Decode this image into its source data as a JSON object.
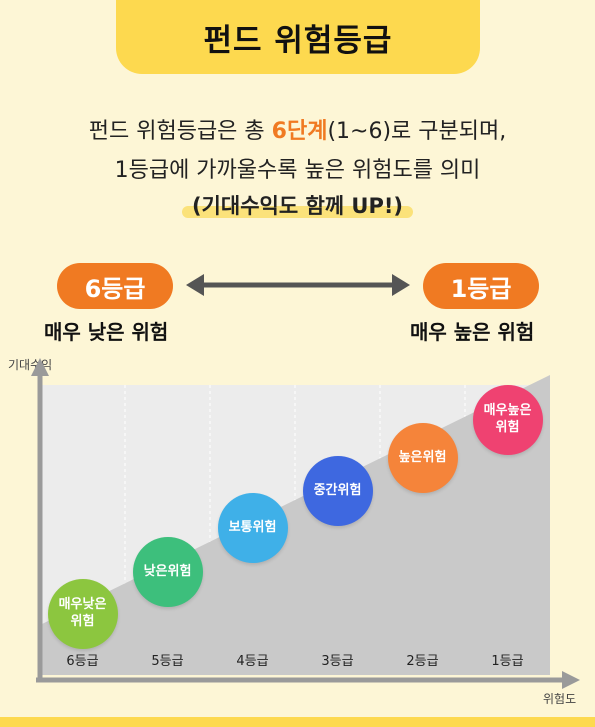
{
  "title": "펀드 위험등급",
  "description": {
    "line1_pre": "펀드 위험등급은 총 ",
    "line1_accent": "6단계",
    "line1_post": "(1~6)로 구분되며,",
    "line2": "1등급에 가까울수록 높은 위험도를 의미",
    "line3": "(기대수익도 함께 UP!)"
  },
  "scale": {
    "left_label": "6등급",
    "left_caption": "매우 낮은 위험",
    "right_label": "1등급",
    "right_caption": "매우 높은 위험"
  },
  "axes": {
    "y_label": "기대수익",
    "x_label": "위험도"
  },
  "grades": [
    {
      "tick": "6등급",
      "risk": "매우낮은\n위험",
      "color": "#8cc63f"
    },
    {
      "tick": "5등급",
      "risk": "낮은위험",
      "color": "#3dbf7c"
    },
    {
      "tick": "4등급",
      "risk": "보통위험",
      "color": "#3fb0e8"
    },
    {
      "tick": "3등급",
      "risk": "중간위험",
      "color": "#3e68e0"
    },
    {
      "tick": "2등급",
      "risk": "높은위험",
      "color": "#f5843a"
    },
    {
      "tick": "1등급",
      "risk": "매우높은\n위험",
      "color": "#ef4271"
    }
  ],
  "colors": {
    "accent": "#f07a22",
    "title_bg": "#fdd94f",
    "page_bg": "#fdf6d6",
    "area_fill": "#c9c9c9",
    "chart_bg": "#ececec"
  }
}
